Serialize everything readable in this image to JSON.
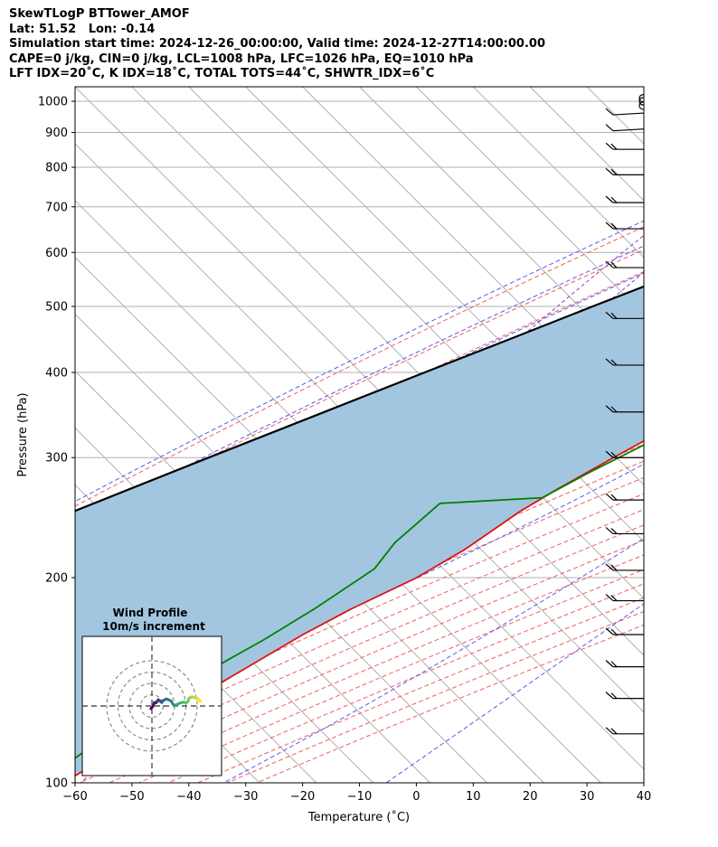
{
  "header": {
    "title": "SkewTLogP BTTower_AMOF",
    "location": "Lat: 51.52   Lon: -0.14",
    "times": "Simulation start time: 2024-12-26_00:00:00, Valid time: 2024-12-27T14:00:00.00",
    "indices1": "CAPE=0 j/kg, CIN=0 j/kg, LCL=1008 hPa, LFC=1026 hPa, EQ=1010 hPa",
    "indices2": "LFT IDX=20˚C, K IDX=18˚C, TOTAL TOTS=44˚C, SHWTR_IDX=6˚C"
  },
  "chart_data": {
    "type": "line",
    "xlabel": "Temperature (˚C)",
    "ylabel": "Pressure (hPa)",
    "xlim": [
      -60,
      40
    ],
    "ylim": [
      1050,
      100
    ],
    "y_log_scale": true,
    "grid": true,
    "x_ticks": [
      -60,
      -50,
      -40,
      -30,
      -20,
      -10,
      0,
      10,
      20,
      30,
      40
    ],
    "y_ticks": [
      100,
      200,
      300,
      400,
      500,
      600,
      700,
      800,
      900,
      1000
    ],
    "series": [
      {
        "role": "temperature",
        "color": "#e01010",
        "pressure": [
          1010,
          1000,
          950,
          900,
          850,
          800,
          700,
          600,
          500,
          450,
          400,
          350,
          300,
          270,
          250,
          220,
          200,
          180,
          165,
          140,
          120,
          100
        ],
        "temperature": [
          4.5,
          6.2,
          11.2,
          13.0,
          13.3,
          12.6,
          8.1,
          4.2,
          -2.4,
          -6.2,
          -10.6,
          -15.9,
          -22.5,
          -26.8,
          -29.5,
          -32.5,
          -36.0,
          -42.0,
          -46.0,
          -52.0,
          -56.0,
          -62.0
        ]
      },
      {
        "role": "dewpoint",
        "color": "#008000",
        "pressure": [
          1010,
          995,
          970,
          940,
          910,
          870,
          825,
          785,
          735,
          690,
          660,
          620,
          580,
          560,
          545,
          500,
          475,
          440,
          400,
          370,
          320,
          285,
          262,
          257,
          225,
          206,
          180,
          162,
          140,
          122,
          100
        ],
        "temperature": [
          4.5,
          1.0,
          -0.5,
          4.5,
          8.4,
          6.6,
          3.6,
          2.3,
          2.7,
          1.1,
          -1.8,
          -7.2,
          -13.0,
          -15.7,
          -15.2,
          -9.4,
          -9.5,
          -7.7,
          -8.2,
          -10.5,
          -18.3,
          -24.2,
          -28.0,
          -45.0,
          -46.0,
          -45.0,
          -48.5,
          -52.0,
          -58.0,
          -62.0,
          -66.0
        ]
      },
      {
        "role": "parcel",
        "color": "#000000",
        "pressure": [
          1010,
          950,
          900,
          850,
          800,
          750,
          700,
          650,
          600,
          550,
          500,
          450,
          400,
          350,
          300,
          250,
          200,
          150,
          100
        ],
        "temperature": [
          4.5,
          -0.6,
          -5.0,
          -9.7,
          -14.6,
          -19.8,
          -25.4,
          -31.4,
          -37.9,
          -45.0,
          -52.8,
          -61.2,
          -70.7,
          -81.4,
          -93.7,
          -108.0,
          -125.0,
          -146.0,
          -174.0
        ]
      }
    ],
    "shading": {
      "between": [
        "temperature",
        "parcel"
      ],
      "color": "#a3c6e0"
    },
    "wind_barbs": [
      {
        "pressure": 1010,
        "speed_kt": 0
      },
      {
        "pressure": 1000,
        "speed_kt": 0
      },
      {
        "pressure": 985,
        "speed_kt": 0
      },
      {
        "pressure": 955,
        "speed_kt": 10
      },
      {
        "pressure": 905,
        "speed_kt": 10
      },
      {
        "pressure": 850,
        "speed_kt": 15
      },
      {
        "pressure": 780,
        "speed_kt": 15
      },
      {
        "pressure": 710,
        "speed_kt": 15
      },
      {
        "pressure": 650,
        "speed_kt": 15
      },
      {
        "pressure": 570,
        "speed_kt": 15
      },
      {
        "pressure": 480,
        "speed_kt": 15
      },
      {
        "pressure": 410,
        "speed_kt": 15
      },
      {
        "pressure": 350,
        "speed_kt": 15
      },
      {
        "pressure": 300,
        "speed_kt": 15
      },
      {
        "pressure": 260,
        "speed_kt": 15
      },
      {
        "pressure": 232,
        "speed_kt": 15
      },
      {
        "pressure": 205,
        "speed_kt": 15
      },
      {
        "pressure": 185,
        "speed_kt": 15
      },
      {
        "pressure": 165,
        "speed_kt": 15
      },
      {
        "pressure": 148,
        "speed_kt": 15
      },
      {
        "pressure": 133,
        "speed_kt": 15
      },
      {
        "pressure": 118,
        "speed_kt": 15
      }
    ],
    "inset": {
      "title": "Wind Profile",
      "subtitle": "10m/s increment",
      "rings_ms": [
        10,
        20,
        30,
        40
      ],
      "hodograph_uv": [
        [
          -0.3,
          -0.8
        ],
        [
          0.4,
          0.1
        ],
        [
          0.7,
          1.0
        ],
        [
          1.2,
          0.9
        ],
        [
          1.8,
          1.8
        ],
        [
          2.3,
          1.4
        ],
        [
          2.8,
          1.0
        ],
        [
          3.3,
          1.6
        ],
        [
          4.1,
          2.0
        ],
        [
          4.7,
          1.8
        ],
        [
          5.5,
          1.4
        ],
        [
          6.0,
          0.5
        ],
        [
          6.6,
          0.1
        ],
        [
          7.3,
          0.5
        ],
        [
          8.2,
          0.9
        ],
        [
          9.1,
          1.1
        ],
        [
          9.8,
          0.9
        ],
        [
          10.3,
          1.3
        ],
        [
          10.6,
          2.2
        ],
        [
          11.3,
          2.6
        ],
        [
          12.1,
          2.4
        ],
        [
          13.0,
          2.1
        ],
        [
          13.8,
          1.5
        ],
        [
          13.2,
          1.3
        ]
      ],
      "colormap": [
        "#440154",
        "#3b528b",
        "#21918c",
        "#5ec962",
        "#fde725"
      ]
    }
  }
}
